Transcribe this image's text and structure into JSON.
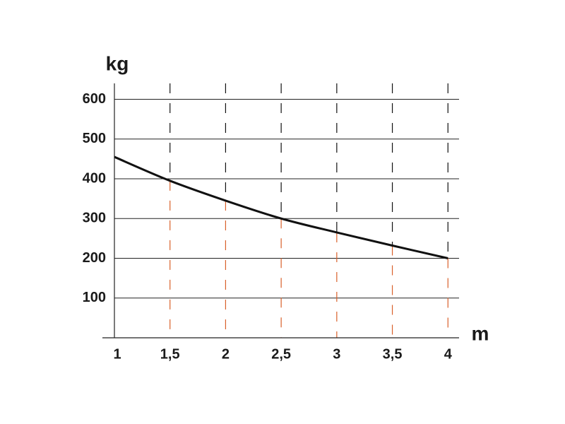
{
  "chart_data": {
    "type": "line",
    "y_label": "kg",
    "x_label": "m",
    "x": [
      1,
      1.5,
      2,
      2.5,
      3,
      3.5,
      4
    ],
    "series": [
      {
        "color": "#111111",
        "values": [
          455,
          395,
          345,
          300,
          265,
          232,
          200
        ]
      }
    ],
    "xlim": [
      1,
      4.1
    ],
    "ylim": [
      0,
      640
    ],
    "xticks": [
      1,
      {
        "value": 1.5,
        "label": "1,5"
      },
      2,
      {
        "value": 2.5,
        "label": "2,5"
      },
      3,
      {
        "value": 3.5,
        "label": "3,5"
      },
      4
    ],
    "yticks": [
      100,
      200,
      300,
      400,
      500,
      600
    ],
    "grid": true,
    "upper_grid_color": "#111111",
    "lower_grid_color": "#d9602a"
  }
}
